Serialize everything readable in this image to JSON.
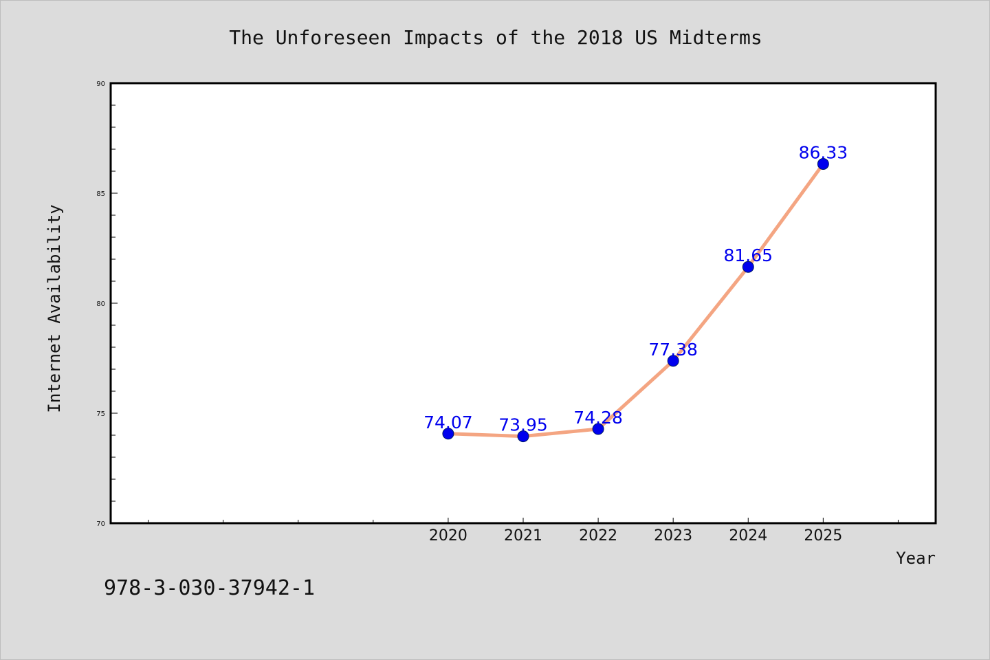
{
  "chart_data": {
    "type": "line",
    "title": "The Unforeseen Impacts of the 2018 US Midterms",
    "xlabel": "Year",
    "ylabel": "Internet Availability",
    "x": [
      2020,
      2021,
      2022,
      2023,
      2024,
      2025
    ],
    "x_tick_labels": [
      "2020",
      "2021",
      "2022",
      "2023",
      "2024",
      "2025"
    ],
    "xlim": [
      2015.5,
      2026.5
    ],
    "ylim": [
      70,
      90
    ],
    "y_ticks": [
      70,
      75,
      80,
      85,
      90
    ],
    "y_tick_labels": [
      "70",
      "75",
      "80",
      "85",
      "90"
    ],
    "series": [
      {
        "values": [
          74.07,
          73.95,
          74.28,
          77.38,
          81.65,
          86.33
        ],
        "data_labels": [
          "74.07",
          "73.95",
          "74.28",
          "77.38",
          "81.65",
          "86.33"
        ],
        "line_color": "#f4a582",
        "marker_color": "#0000ee",
        "label_color": "#0000ee"
      }
    ],
    "grid": false,
    "legend": "none"
  },
  "footer_code": "978-3-030-37942-1",
  "colors": {
    "background": "#dcdcdc",
    "plot_background": "#ffffff",
    "axis": "#000000"
  }
}
